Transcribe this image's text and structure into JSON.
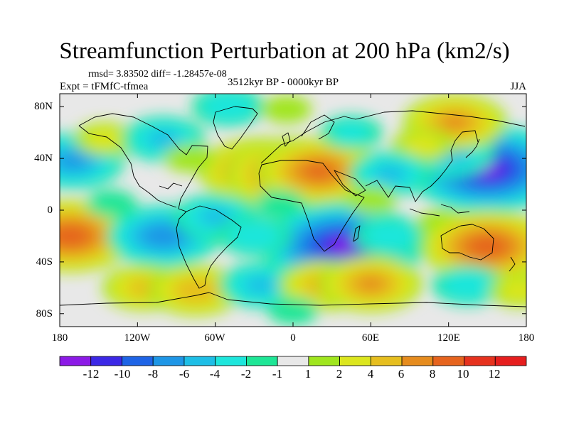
{
  "title": "Streamfunction Perturbation at 200 hPa (km2/s)",
  "stats": "rmsd= 3.83502  diff= -1.28457e-08",
  "experiment": "Expt = tFMfC-tfmea",
  "period": "3512kyr BP - 0000kyr BP",
  "season": "JJA",
  "lat_ticks": [
    "80N",
    "40N",
    "0",
    "40S",
    "80S"
  ],
  "lon_ticks": [
    "180",
    "120W",
    "60W",
    "0",
    "60E",
    "120E",
    "180"
  ],
  "colorbar": {
    "labels": [
      "-12",
      "-10",
      "-8",
      "-6",
      "-4",
      "-2",
      "-1",
      "1",
      "2",
      "4",
      "6",
      "8",
      "10",
      "12"
    ],
    "colors": [
      "#8c1ae6",
      "#3c28e6",
      "#1e64e6",
      "#1e96e6",
      "#1ebee6",
      "#1ee6dc",
      "#1ee696",
      "#e8e8e8",
      "#a0e61e",
      "#dce61e",
      "#e6be1e",
      "#e68c1e",
      "#e6641e",
      "#e6321e",
      "#e61e1e"
    ]
  },
  "chart_data": {
    "type": "heatmap",
    "title": "Streamfunction Perturbation at 200 hPa (km2/s)",
    "variable": "streamfunction perturbation",
    "units": "km2/s",
    "level": "200 hPa",
    "season": "JJA",
    "lon_range": [
      -180,
      180
    ],
    "lat_range": [
      -90,
      90
    ],
    "contour_levels": [
      -12,
      -10,
      -8,
      -6,
      -4,
      -2,
      -1,
      1,
      2,
      4,
      6,
      8,
      10,
      12
    ],
    "features": [
      {
        "lon": -25,
        "lat": 30,
        "value": 8
      },
      {
        "lon": 0,
        "lat": 28,
        "value": 9
      },
      {
        "lon": 20,
        "lat": 30,
        "value": 8
      },
      {
        "lon": 150,
        "lat": 32,
        "value": -12
      },
      {
        "lon": 120,
        "lat": 45,
        "value": -5
      },
      {
        "lon": 125,
        "lat": 68,
        "value": 6
      },
      {
        "lon": 100,
        "lat": 50,
        "value": 2
      },
      {
        "lon": -170,
        "lat": 38,
        "value": -6
      },
      {
        "lon": -145,
        "lat": 55,
        "value": 2
      },
      {
        "lon": -100,
        "lat": 55,
        "value": -4
      },
      {
        "lon": -50,
        "lat": 80,
        "value": -3
      },
      {
        "lon": -5,
        "lat": 78,
        "value": 1
      },
      {
        "lon": -80,
        "lat": 40,
        "value": 1
      },
      {
        "lon": 45,
        "lat": 60,
        "value": -2
      },
      {
        "lon": 75,
        "lat": 28,
        "value": -4
      },
      {
        "lon": 38,
        "lat": -28,
        "value": -12
      },
      {
        "lon": 75,
        "lat": -20,
        "value": -3
      },
      {
        "lon": 115,
        "lat": -10,
        "value": 1
      },
      {
        "lon": 150,
        "lat": -28,
        "value": 9
      },
      {
        "lon": -172,
        "lat": -20,
        "value": 9
      },
      {
        "lon": -100,
        "lat": -20,
        "value": -7
      },
      {
        "lon": -60,
        "lat": -5,
        "value": -4
      },
      {
        "lon": -30,
        "lat": -20,
        "value": -3
      },
      {
        "lon": -115,
        "lat": -60,
        "value": 4
      },
      {
        "lon": -75,
        "lat": -62,
        "value": 5
      },
      {
        "lon": -25,
        "lat": -58,
        "value": -4
      },
      {
        "lon": 25,
        "lat": -58,
        "value": 5
      },
      {
        "lon": 60,
        "lat": -57,
        "value": 6
      },
      {
        "lon": 135,
        "lat": -58,
        "value": -3
      },
      {
        "lon": 175,
        "lat": -62,
        "value": 2
      },
      {
        "lon": 0,
        "lat": -78,
        "value": -1
      },
      {
        "lon": -10,
        "lat": 5,
        "value": -1
      },
      {
        "lon": 60,
        "lat": 8,
        "value": 1
      },
      {
        "lon": -140,
        "lat": 5,
        "value": -1
      }
    ]
  }
}
